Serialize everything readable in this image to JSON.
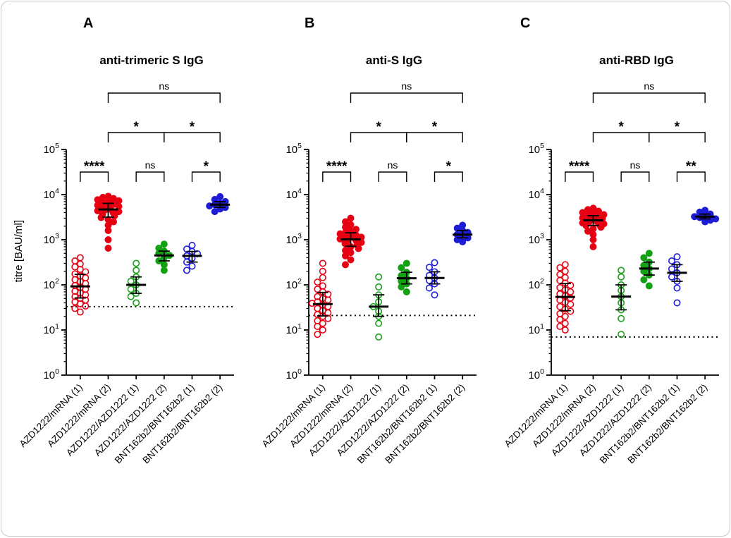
{
  "figure": {
    "y_axis_label": "titre [BAU/ml]",
    "categories": [
      "AZD1222/mRNA (1)",
      "AZD1222/mRNA (2)",
      "AZD1222/AZD1222 (1)",
      "AZD1222/AZD1222 (2)",
      "BNT162b2/BNT162b2 (1)",
      "BNT162b2/BNT162b2 (2)"
    ],
    "y_tick_labels": [
      "10^0",
      "10^1",
      "10^2",
      "10^3",
      "10^4",
      "10^5"
    ],
    "colors": {
      "red": "#e60012",
      "green": "#13a113",
      "blue": "#1c1cd6",
      "axis": "#000000"
    }
  },
  "chart_data": [
    {
      "type": "scatter",
      "panel_letter": "A",
      "title": "anti-trimeric S IgG",
      "ylabel": "titre [BAU/ml]",
      "y_scale": "log10",
      "ylim": [
        1,
        100000
      ],
      "cutoff_line": 33,
      "categories": [
        "AZD1222/mRNA (1)",
        "AZD1222/mRNA (2)",
        "AZD1222/AZD1222 (1)",
        "AZD1222/AZD1222 (2)",
        "BNT162b2/BNT162b2 (1)",
        "BNT162b2/BNT162b2 (2)"
      ],
      "series": [
        {
          "name": "AZD1222/mRNA (1)",
          "color": "red",
          "marker": "open",
          "values": [
            25,
            30,
            34,
            38,
            42,
            46,
            50,
            55,
            60,
            66,
            72,
            80,
            88,
            97,
            107,
            118,
            130,
            143,
            158,
            175,
            195,
            220,
            250,
            290,
            340,
            400
          ]
        },
        {
          "name": "AZD1222/mRNA (2)",
          "color": "red",
          "marker": "solid",
          "values": [
            650,
            1000,
            1600,
            2100,
            2500,
            2800,
            3100,
            3400,
            3700,
            4000,
            4200,
            4400,
            4600,
            4800,
            5000,
            5200,
            5500,
            5800,
            6100,
            6500,
            6900,
            7300,
            7700,
            8200,
            8700,
            9200
          ]
        },
        {
          "name": "AZD1222/AZD1222 (1)",
          "color": "green",
          "marker": "open",
          "values": [
            40,
            55,
            65,
            80,
            100,
            120,
            150,
            210,
            300
          ]
        },
        {
          "name": "AZD1222/AZD1222 (2)",
          "color": "green",
          "marker": "solid",
          "values": [
            210,
            280,
            340,
            400,
            450,
            500,
            560,
            650,
            800
          ]
        },
        {
          "name": "BNT162b2/BNT162b2 (1)",
          "color": "blue",
          "marker": "open",
          "values": [
            210,
            260,
            320,
            390,
            440,
            490,
            550,
            620,
            750
          ]
        },
        {
          "name": "BNT162b2/BNT162b2 (2)",
          "color": "blue",
          "marker": "solid",
          "values": [
            4200,
            4800,
            5200,
            5600,
            6000,
            6400,
            7000,
            7800,
            9000
          ]
        }
      ],
      "significance": [
        {
          "groups": [
            0,
            1
          ],
          "label": "****",
          "level": 0
        },
        {
          "groups": [
            2,
            3
          ],
          "label": "ns",
          "level": 0
        },
        {
          "groups": [
            4,
            5
          ],
          "label": "*",
          "level": 0
        },
        {
          "groups": [
            1,
            3
          ],
          "label": "*",
          "level": 1
        },
        {
          "groups": [
            3,
            5
          ],
          "label": "*",
          "level": 1
        },
        {
          "groups": [
            1,
            5
          ],
          "label": "ns",
          "level": 2
        }
      ]
    },
    {
      "type": "scatter",
      "panel_letter": "B",
      "title": "anti-S IgG",
      "ylabel": "",
      "y_scale": "log10",
      "ylim": [
        1,
        100000
      ],
      "cutoff_line": 21,
      "categories": [
        "AZD1222/mRNA (1)",
        "AZD1222/mRNA (2)",
        "AZD1222/AZD1222 (1)",
        "AZD1222/AZD1222 (2)",
        "BNT162b2/BNT162b2 (1)",
        "BNT162b2/BNT162b2 (2)"
      ],
      "series": [
        {
          "name": "AZD1222/mRNA (1)",
          "color": "red",
          "marker": "open",
          "values": [
            8,
            10,
            12,
            14,
            16,
            18,
            20,
            22,
            24,
            27,
            30,
            33,
            36,
            39,
            42,
            46,
            50,
            55,
            62,
            70,
            80,
            95,
            115,
            145,
            200,
            300
          ]
        },
        {
          "name": "AZD1222/mRNA (2)",
          "color": "red",
          "marker": "solid",
          "values": [
            280,
            360,
            440,
            520,
            580,
            640,
            700,
            760,
            820,
            870,
            920,
            960,
            1000,
            1040,
            1090,
            1140,
            1200,
            1270,
            1350,
            1450,
            1570,
            1700,
            1900,
            2150,
            2500,
            3000
          ]
        },
        {
          "name": "AZD1222/AZD1222 (1)",
          "color": "green",
          "marker": "open",
          "values": [
            7,
            14,
            20,
            26,
            33,
            42,
            60,
            90,
            150
          ]
        },
        {
          "name": "AZD1222/AZD1222 (2)",
          "color": "green",
          "marker": "solid",
          "values": [
            70,
            90,
            105,
            120,
            140,
            160,
            190,
            240,
            300
          ]
        },
        {
          "name": "BNT162b2/BNT162b2 (1)",
          "color": "blue",
          "marker": "open",
          "values": [
            60,
            85,
            105,
            125,
            142,
            162,
            195,
            245,
            310
          ]
        },
        {
          "name": "BNT162b2/BNT162b2 (2)",
          "color": "blue",
          "marker": "solid",
          "values": [
            900,
            1000,
            1100,
            1200,
            1300,
            1450,
            1600,
            1800,
            2100
          ]
        }
      ],
      "significance": [
        {
          "groups": [
            0,
            1
          ],
          "label": "****",
          "level": 0
        },
        {
          "groups": [
            2,
            3
          ],
          "label": "ns",
          "level": 0
        },
        {
          "groups": [
            4,
            5
          ],
          "label": "*",
          "level": 0
        },
        {
          "groups": [
            1,
            3
          ],
          "label": "*",
          "level": 1
        },
        {
          "groups": [
            3,
            5
          ],
          "label": "*",
          "level": 1
        },
        {
          "groups": [
            1,
            5
          ],
          "label": "ns",
          "level": 2
        }
      ]
    },
    {
      "type": "scatter",
      "panel_letter": "C",
      "title": "anti-RBD IgG",
      "ylabel": "",
      "y_scale": "log10",
      "ylim": [
        1,
        100000
      ],
      "cutoff_line": 7,
      "categories": [
        "AZD1222/mRNA (1)",
        "AZD1222/mRNA (2)",
        "AZD1222/AZD1222 (1)",
        "AZD1222/AZD1222 (2)",
        "BNT162b2/BNT162b2 (1)",
        "BNT162b2/BNT162b2 (2)"
      ],
      "series": [
        {
          "name": "AZD1222/mRNA (1)",
          "color": "red",
          "marker": "open",
          "values": [
            10,
            12,
            14,
            17,
            20,
            23,
            26,
            29,
            33,
            37,
            41,
            46,
            51,
            57,
            63,
            70,
            78,
            87,
            98,
            110,
            125,
            145,
            170,
            200,
            240,
            280
          ]
        },
        {
          "name": "AZD1222/mRNA (2)",
          "color": "red",
          "marker": "solid",
          "values": [
            700,
            1000,
            1300,
            1550,
            1750,
            1900,
            2050,
            2150,
            2250,
            2350,
            2450,
            2550,
            2650,
            2750,
            2850,
            2950,
            3050,
            3150,
            3300,
            3450,
            3600,
            3800,
            4000,
            4300,
            4650,
            5000
          ]
        },
        {
          "name": "AZD1222/AZD1222 (1)",
          "color": "green",
          "marker": "open",
          "values": [
            8,
            18,
            28,
            40,
            55,
            75,
            100,
            150,
            210
          ]
        },
        {
          "name": "AZD1222/AZD1222 (2)",
          "color": "green",
          "marker": "solid",
          "values": [
            95,
            130,
            165,
            200,
            230,
            270,
            320,
            400,
            500
          ]
        },
        {
          "name": "BNT162b2/BNT162b2 (1)",
          "color": "blue",
          "marker": "open",
          "values": [
            40,
            85,
            120,
            150,
            185,
            225,
            280,
            340,
            420
          ]
        },
        {
          "name": "BNT162b2/BNT162b2 (2)",
          "color": "blue",
          "marker": "solid",
          "values": [
            2500,
            2700,
            2900,
            3100,
            3250,
            3450,
            3700,
            4100,
            4500
          ]
        }
      ],
      "significance": [
        {
          "groups": [
            0,
            1
          ],
          "label": "****",
          "level": 0
        },
        {
          "groups": [
            2,
            3
          ],
          "label": "ns",
          "level": 0
        },
        {
          "groups": [
            4,
            5
          ],
          "label": "**",
          "level": 0
        },
        {
          "groups": [
            1,
            3
          ],
          "label": "*",
          "level": 1
        },
        {
          "groups": [
            3,
            5
          ],
          "label": "*",
          "level": 1
        },
        {
          "groups": [
            1,
            5
          ],
          "label": "ns",
          "level": 2
        }
      ]
    }
  ]
}
